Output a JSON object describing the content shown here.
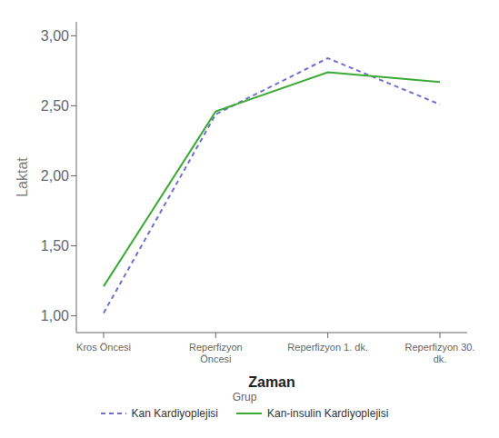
{
  "chart_data": {
    "type": "line",
    "categories": [
      "Kros Öncesi",
      "Reperfizyon\nÖncesi",
      "Reperfizyon 1. dk.",
      "Reperfizyon 30.\ndk."
    ],
    "series": [
      {
        "name": "Kan Kardiyoplejisi",
        "color": "#7070cc",
        "line_style": "dashed",
        "values": [
          1.02,
          2.44,
          2.84,
          2.51
        ]
      },
      {
        "name": "Kan-insulin Kardiyoplejisi",
        "color": "#3aaa35",
        "line_style": "solid",
        "values": [
          1.21,
          2.46,
          2.74,
          2.67
        ]
      }
    ],
    "xlabel": "Zaman",
    "ylabel": "Laktat",
    "ylim": [
      0.88,
      3.1
    ],
    "yticks": [
      {
        "value": 1.0,
        "label": "1,00"
      },
      {
        "value": 1.5,
        "label": "1,50"
      },
      {
        "value": 2.0,
        "label": "2,00"
      },
      {
        "value": 2.5,
        "label": "2,50"
      },
      {
        "value": 3.0,
        "label": "3,00"
      }
    ],
    "grid": false,
    "legend": "bottom",
    "legend_title": "Grup"
  }
}
